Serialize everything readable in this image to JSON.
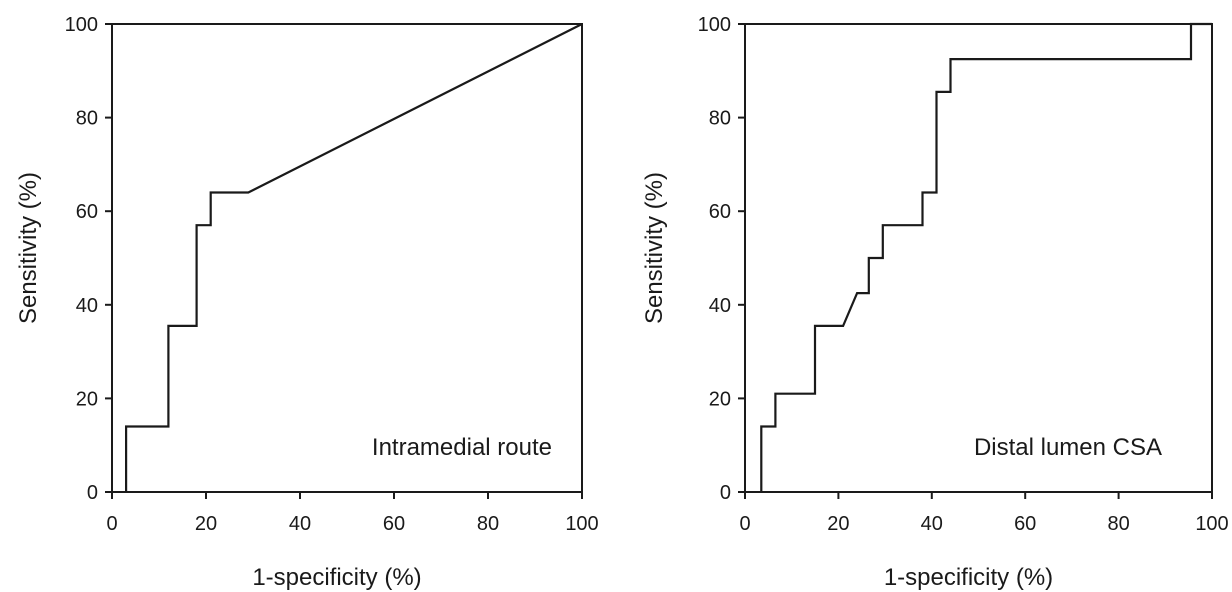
{
  "chart_data": [
    {
      "type": "line",
      "title": "",
      "annotation": "Intramedial  route",
      "xlabel": "1-specificity (%)",
      "ylabel": "Sensitivity (%)",
      "xlim": [
        0,
        100
      ],
      "ylim": [
        0,
        100
      ],
      "xticks": [
        0,
        20,
        40,
        60,
        80,
        100
      ],
      "yticks": [
        0,
        20,
        40,
        60,
        80,
        100
      ],
      "grid": false,
      "series": [
        {
          "x": [
            3,
            3,
            12,
            12,
            18,
            18,
            21,
            21,
            29,
            100
          ],
          "y": [
            0,
            14,
            14,
            35.5,
            35.5,
            57,
            57,
            64,
            64,
            100
          ]
        }
      ]
    },
    {
      "type": "line",
      "title": "",
      "annotation": "Distal lumen CSA",
      "xlabel": "1-specificity (%)",
      "ylabel": "Sensitivity (%)",
      "xlim": [
        0,
        100
      ],
      "ylim": [
        0,
        100
      ],
      "xticks": [
        0,
        20,
        40,
        60,
        80,
        100
      ],
      "yticks": [
        0,
        20,
        40,
        60,
        80,
        100
      ],
      "grid": false,
      "series": [
        {
          "x": [
            3.5,
            3.5,
            6.5,
            6.5,
            15,
            15,
            21,
            24,
            26.5,
            26.5,
            29.5,
            29.5,
            38,
            38,
            41,
            41,
            44,
            44,
            95.5,
            95.5,
            100
          ],
          "y": [
            0,
            14,
            14,
            21,
            21,
            35.5,
            35.5,
            42.5,
            42.5,
            50,
            50,
            57,
            57,
            64,
            64,
            85.5,
            85.5,
            92.5,
            92.5,
            100,
            100
          ]
        }
      ]
    }
  ]
}
